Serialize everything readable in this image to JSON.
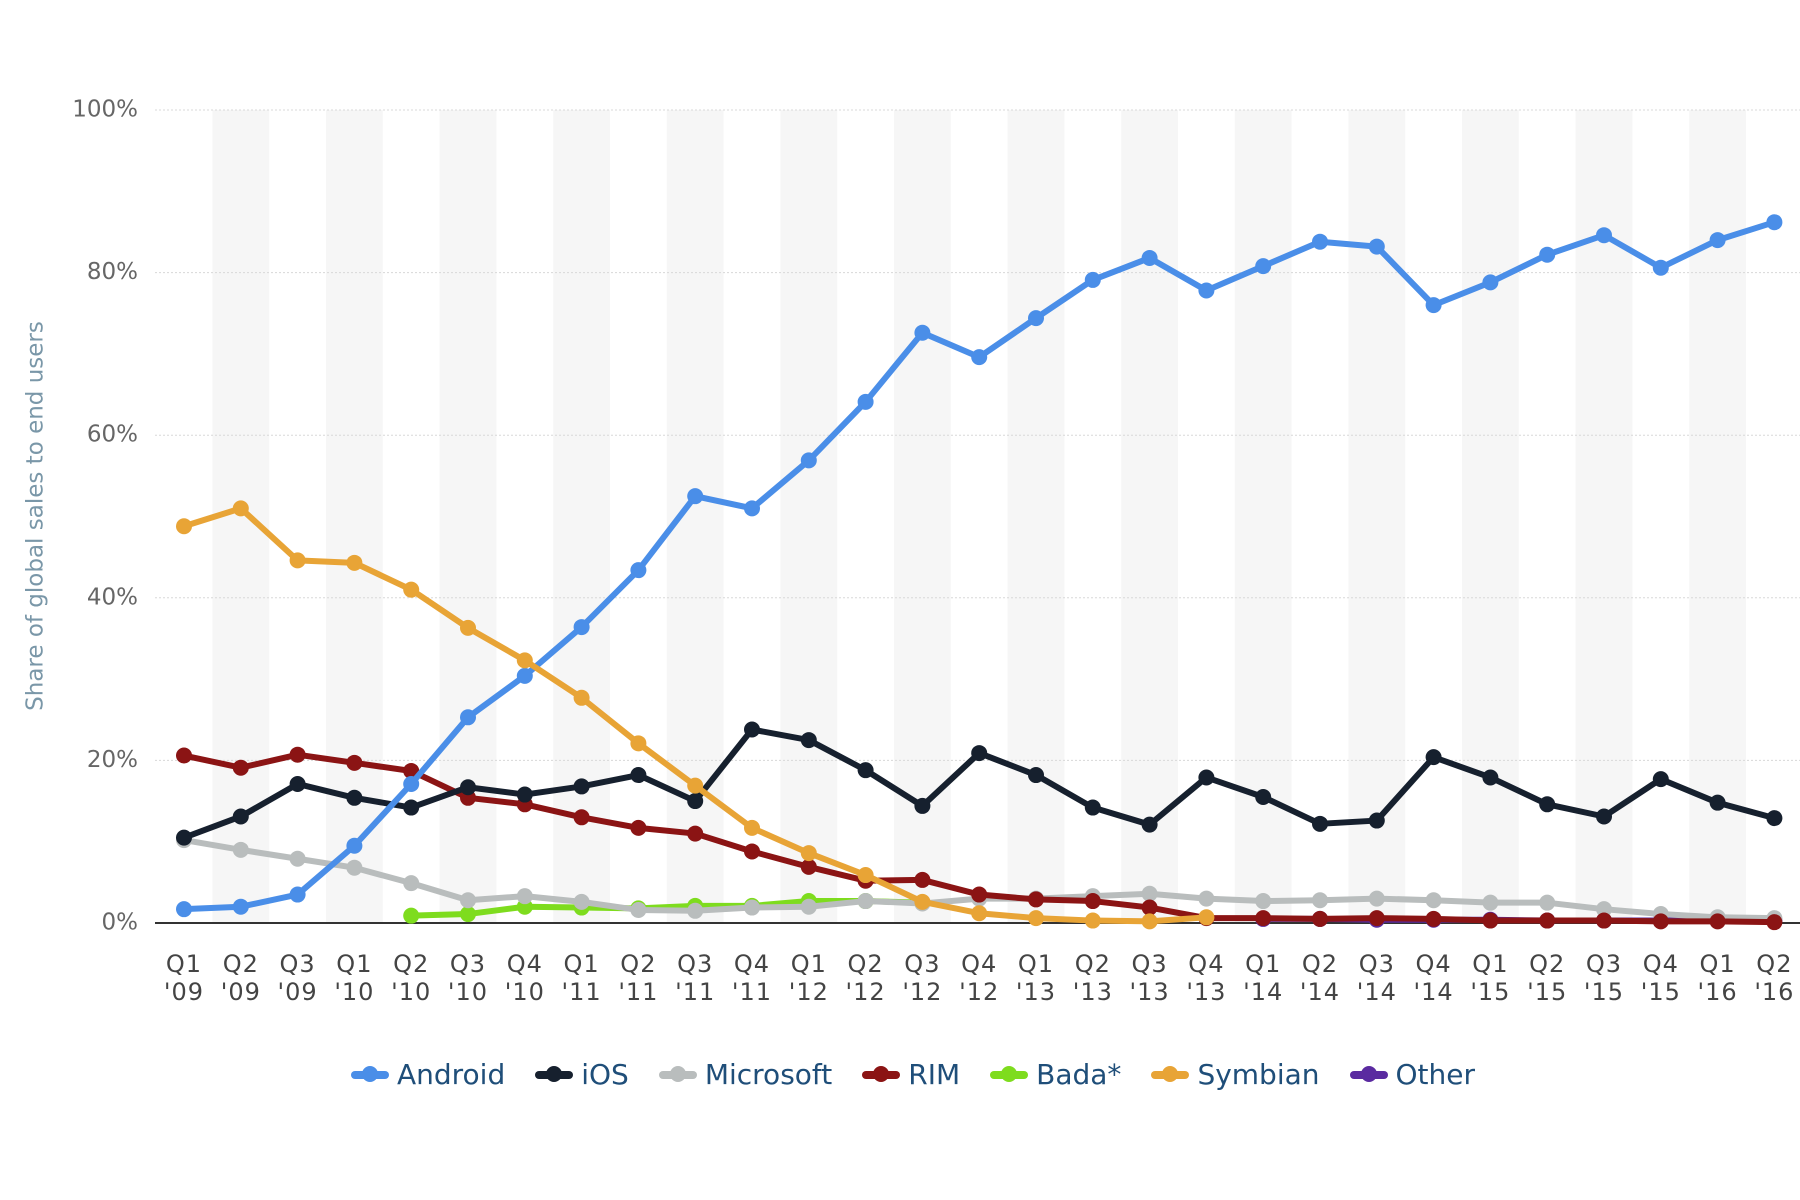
{
  "chart_data": {
    "type": "line",
    "y_label": "Share of global sales to end users",
    "categories": [
      "Q1 '09",
      "Q2 '09",
      "Q3 '09",
      "Q1 '10",
      "Q2 '10",
      "Q3 '10",
      "Q4 '10",
      "Q1 '11",
      "Q2 '11",
      "Q3 '11",
      "Q4 '11",
      "Q1 '12",
      "Q2 '12",
      "Q3 '12",
      "Q4 '12",
      "Q1 '13",
      "Q2 '13",
      "Q3 '13",
      "Q4 '13",
      "Q1 '14",
      "Q2 '14",
      "Q3 '14",
      "Q4 '14",
      "Q1 '15",
      "Q2 '15",
      "Q3 '15",
      "Q4 '15",
      "Q1 '16",
      "Q2 '16"
    ],
    "ylim": [
      0,
      100
    ],
    "yticks": [
      {
        "value": 0,
        "label": "0%"
      },
      {
        "value": 20,
        "label": "20%"
      },
      {
        "value": 40,
        "label": "40%"
      },
      {
        "value": 60,
        "label": "60%"
      },
      {
        "value": 80,
        "label": "80%"
      },
      {
        "value": 100,
        "label": "100%"
      }
    ],
    "grid": true,
    "legend": "bottom",
    "series": [
      {
        "name": "Android",
        "color": "#4a8ee8",
        "values": [
          1.7,
          2.0,
          3.5,
          9.5,
          17.1,
          25.3,
          30.4,
          36.4,
          43.4,
          52.5,
          51.0,
          56.9,
          64.1,
          72.6,
          69.6,
          74.4,
          79.1,
          81.8,
          77.8,
          80.8,
          83.8,
          83.2,
          76.0,
          78.8,
          82.2,
          84.6,
          80.6,
          84.0,
          86.2
        ]
      },
      {
        "name": "iOS",
        "color": "#16202e",
        "values": [
          10.5,
          13.1,
          17.1,
          15.4,
          14.2,
          16.7,
          15.8,
          16.8,
          18.2,
          15.0,
          23.8,
          22.5,
          18.8,
          14.4,
          20.9,
          18.2,
          14.2,
          12.1,
          17.9,
          15.5,
          12.2,
          12.6,
          20.4,
          17.9,
          14.6,
          13.1,
          17.7,
          14.8,
          12.9
        ]
      },
      {
        "name": "Microsoft",
        "color": "#b9bdbd",
        "values": [
          10.2,
          9.0,
          7.9,
          6.8,
          4.9,
          2.8,
          3.3,
          2.6,
          1.6,
          1.5,
          1.9,
          2.0,
          2.7,
          2.4,
          3.0,
          3.0,
          3.3,
          3.6,
          3.0,
          2.7,
          2.8,
          3.0,
          2.8,
          2.5,
          2.5,
          1.7,
          1.1,
          0.7,
          0.6
        ]
      },
      {
        "name": "RIM",
        "color": "#8b1414",
        "values": [
          20.6,
          19.1,
          20.7,
          19.7,
          18.7,
          15.4,
          14.6,
          13.0,
          11.7,
          11.0,
          8.8,
          6.9,
          5.2,
          5.3,
          3.5,
          2.9,
          2.7,
          1.9,
          0.6,
          0.6,
          0.5,
          0.6,
          0.5,
          0.3,
          0.3,
          0.3,
          0.2,
          0.2,
          0.1
        ]
      },
      {
        "name": "Bada*",
        "color": "#7edc1e",
        "values": [
          null,
          null,
          null,
          null,
          0.9,
          1.1,
          2.0,
          1.9,
          1.8,
          2.1,
          2.1,
          2.7,
          2.7,
          2.5,
          null,
          null,
          null,
          null,
          null,
          null,
          null,
          null,
          null,
          null,
          null,
          null,
          null,
          null,
          null
        ]
      },
      {
        "name": "Symbian",
        "color": "#e8a436",
        "values": [
          48.8,
          51.0,
          44.6,
          44.3,
          41.0,
          36.3,
          32.3,
          27.7,
          22.1,
          16.9,
          11.7,
          8.6,
          5.9,
          2.6,
          1.2,
          0.6,
          0.3,
          0.2,
          0.7,
          null,
          null,
          null,
          null,
          null,
          null,
          null,
          null,
          null,
          null
        ]
      },
      {
        "name": "Other",
        "color": "#5a2aa0",
        "values": [
          null,
          null,
          null,
          null,
          null,
          null,
          null,
          null,
          null,
          null,
          null,
          null,
          null,
          null,
          null,
          null,
          null,
          null,
          null,
          0.5,
          0.5,
          0.4,
          0.4,
          0.4,
          0.3,
          0.3,
          0.3,
          0.3,
          0.3
        ]
      }
    ]
  }
}
